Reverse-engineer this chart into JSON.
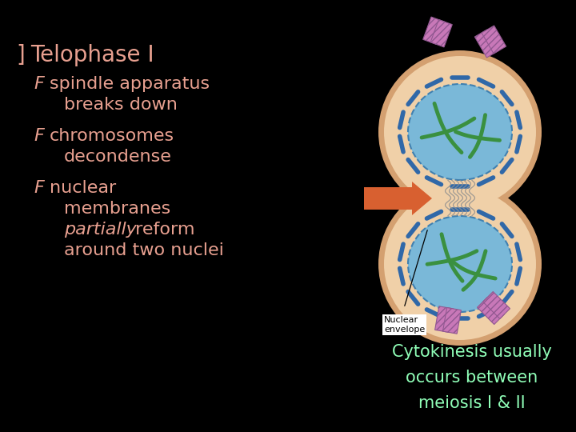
{
  "background_color": "#000000",
  "title_bullet_color": "#e8a090",
  "title_text": "Telophase I",
  "title_color": "#e8a090",
  "bullet_color": "#e8a090",
  "cyto_color": "#90ffb8",
  "cyto_line1": "Cytokinesis usually",
  "cyto_line2": "occurs between",
  "cyto_line3": "meiosis I & II",
  "cell_outer": "#d4a070",
  "cell_fill": "#f0d0a8",
  "nucleus_fill": "#7ab8d8",
  "nucleus_edge": "#4080b0",
  "chrom_blue": "#3068a8",
  "chrom_green": "#3a9040",
  "chrom_pink": "#c878b8",
  "chrom_pink_edge": "#905890",
  "arrow_color": "#d86030",
  "label_color": "#111111",
  "mid_line_color": "#909090",
  "title_fs": 20,
  "bullet_fs": 16,
  "cyto_fs": 15,
  "label_fs": 8
}
